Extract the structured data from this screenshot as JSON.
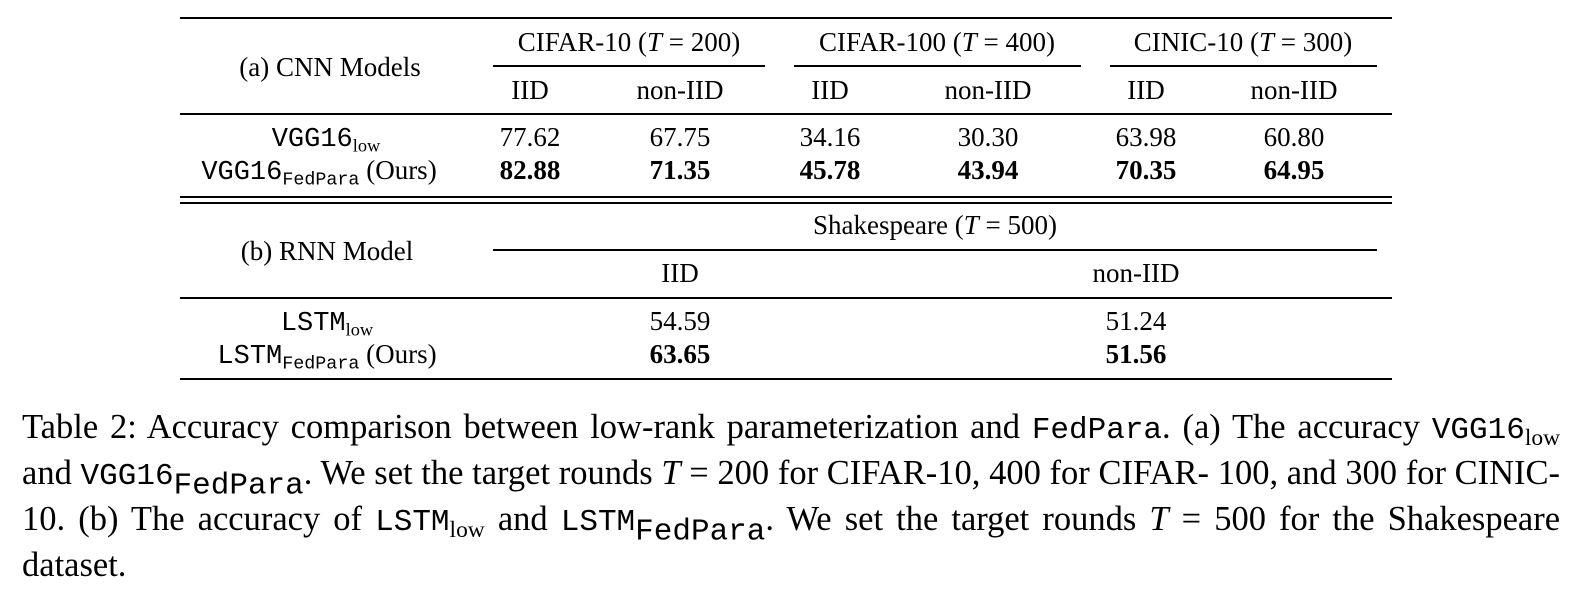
{
  "table": {
    "section_a": {
      "label": "(a) CNN Models",
      "datasets": [
        {
          "name": "CIFAR-10",
          "rounds": "200"
        },
        {
          "name": "CIFAR-100",
          "rounds": "400"
        },
        {
          "name": "CINIC-10",
          "rounds": "300"
        }
      ],
      "col_iid": "IID",
      "col_noniid": "non-IID",
      "rows": [
        {
          "model": "VGG16",
          "sub": "low",
          "suffix": "",
          "values": [
            "77.62",
            "67.75",
            "34.16",
            "30.30",
            "63.98",
            "60.80"
          ],
          "bold": false
        },
        {
          "model": "VGG16",
          "sub": "FedPara",
          "suffix": "(Ours)",
          "values": [
            "82.88",
            "71.35",
            "45.78",
            "43.94",
            "70.35",
            "64.95"
          ],
          "bold": true
        }
      ]
    },
    "section_b": {
      "label": "(b) RNN Model",
      "dataset": {
        "name": "Shakespeare",
        "rounds": "500"
      },
      "col_iid": "IID",
      "col_noniid": "non-IID",
      "rows": [
        {
          "model": "LSTM",
          "sub": "low",
          "suffix": "",
          "values": [
            "54.59",
            "51.24"
          ],
          "bold": false
        },
        {
          "model": "LSTM",
          "sub": "FedPara",
          "suffix": "(Ours)",
          "values": [
            "63.65",
            "51.56"
          ],
          "bold": true
        }
      ]
    },
    "var_T": "T",
    "eq": "="
  },
  "caption": {
    "l1_a": "Table 2: Accuracy comparison between low-rank parameterization and",
    "l1_fedpara": "FedPara",
    "l1_b": ". (a) The accuracy",
    "l2_vgg": "VGG16",
    "l2_low": "low",
    "l2_and": "and",
    "l2_vgg2": "VGG16",
    "l2_fp": "FedPara",
    "l2_b": ". We set the target rounds",
    "l2_T": "T",
    "l2_c": "= 200 for CIFAR-10, 400 for CIFAR-",
    "l3_a": "100, and 300 for CINIC-10. (b) The accuracy of",
    "l3_lstm": "LSTM",
    "l3_low": "low",
    "l3_and": "and",
    "l3_lstm2": "LSTM",
    "l3_fp": "FedPara",
    "l3_b": ". We set the target",
    "l4_a": "rounds",
    "l4_T": "T",
    "l4_b": "= 500 for the Shakespeare dataset."
  }
}
